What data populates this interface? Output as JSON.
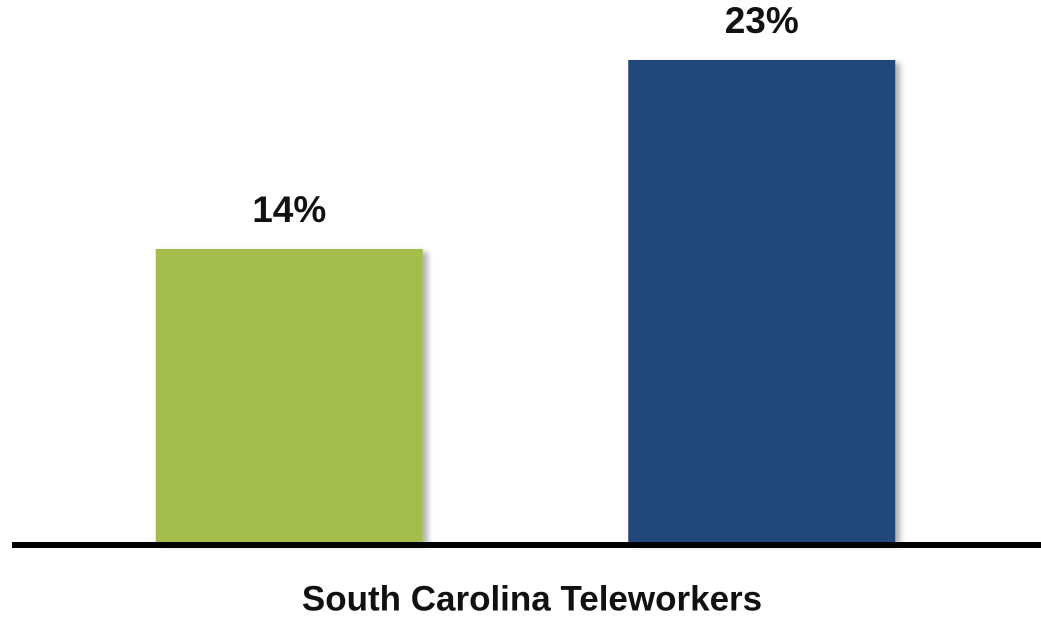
{
  "chart_data": {
    "type": "bar",
    "xlabel": "South Carolina Teleworkers",
    "categories": [
      null,
      null
    ],
    "values": [
      14,
      23
    ],
    "value_labels": [
      "14%",
      "23%"
    ],
    "colors": [
      "#a5bd4e",
      "#24477a"
    ],
    "ylim": [
      0,
      25
    ]
  }
}
